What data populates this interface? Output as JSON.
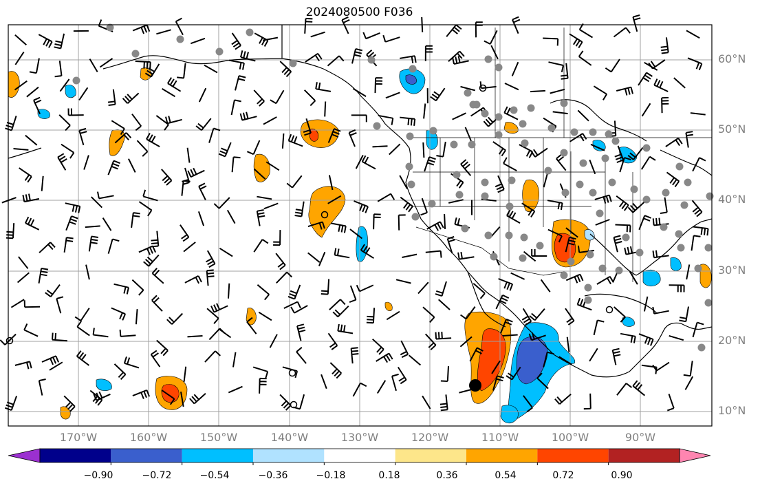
{
  "title": "2024080500 F036",
  "map": {
    "lat_labels": [
      "60°N",
      "50°N",
      "40°N",
      "30°N",
      "20°N",
      "10°N"
    ],
    "lon_labels": [
      "170°W",
      "160°W",
      "150°W",
      "140°W",
      "130°W",
      "120°W",
      "110°W",
      "100°W",
      "90°W"
    ],
    "grid_color": "#a0a0a0",
    "station_color": "#888888",
    "coast_color": "#000000"
  },
  "colorbar": {
    "ticks": [
      "−0.90",
      "−0.72",
      "−0.54",
      "−0.36",
      "−0.18",
      "0.18",
      "0.36",
      "0.54",
      "0.72",
      "0.90"
    ],
    "colors": [
      "#9b30d0",
      "#00008b",
      "#3a5fcd",
      "#00bfff",
      "#b0e2ff",
      "#ffffff",
      "#fde68a",
      "#ffa500",
      "#ff4500",
      "#b22222",
      "#ff85b0"
    ],
    "extend": "both"
  }
}
